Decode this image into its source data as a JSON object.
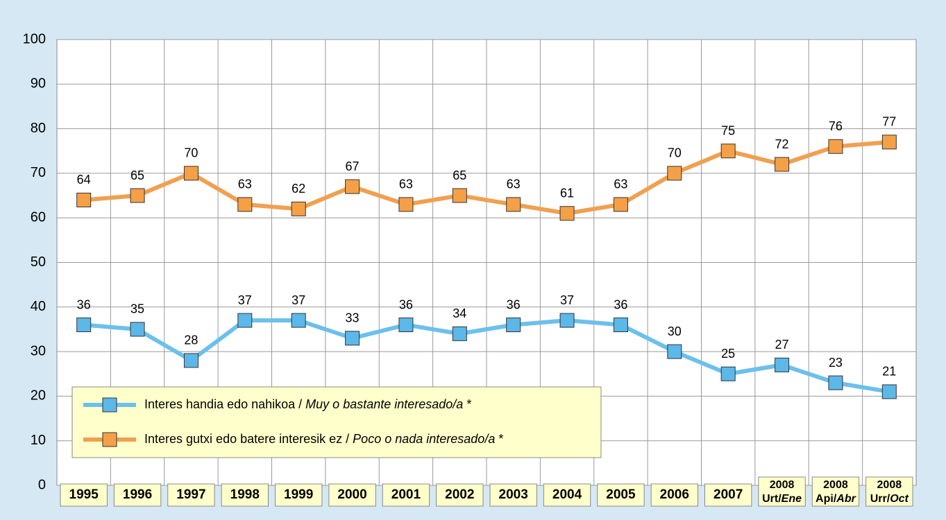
{
  "chart_data": {
    "type": "line",
    "categories": [
      "1995",
      "1996",
      "1997",
      "1998",
      "1999",
      "2000",
      "2001",
      "2002",
      "2003",
      "2004",
      "2005",
      "2006",
      "2007",
      "2008 Urt/Ene",
      "2008 Api/Abr",
      "2008 Urr/Oct"
    ],
    "series": [
      {
        "name": "Interes handia edo nahikoa / Muy o bastante interesado/a *",
        "color": "#6cc0ec",
        "marker_color": "#5bb8e8",
        "values": [
          36,
          35,
          28,
          37,
          37,
          33,
          36,
          34,
          36,
          37,
          36,
          30,
          25,
          27,
          23,
          21
        ]
      },
      {
        "name": "Interes gutxi edo batere interesik ez / Poco o nada interesado/a *",
        "color": "#f0a050",
        "marker_color": "#f5a047",
        "values": [
          64,
          65,
          70,
          63,
          62,
          67,
          63,
          65,
          63,
          61,
          63,
          70,
          75,
          72,
          76,
          77
        ]
      }
    ],
    "ylim": [
      0,
      100
    ],
    "yticks": [
      0,
      10,
      20,
      30,
      40,
      50,
      60,
      70,
      80,
      90,
      100
    ],
    "grid": true,
    "legend": "lower left"
  }
}
